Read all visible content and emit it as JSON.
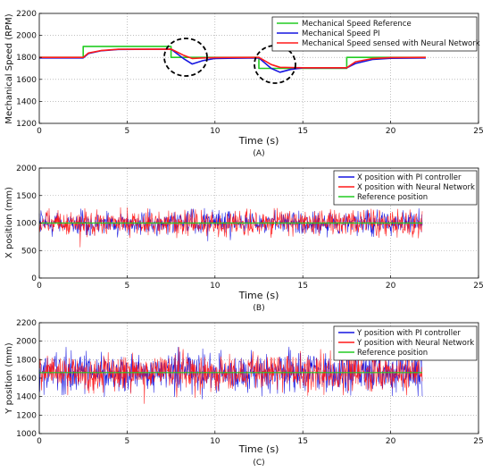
{
  "colors": {
    "green": "#22cc22",
    "blue": "#1515e0",
    "red": "#ff1a1a",
    "grid": "#9a9a9a",
    "axis": "#000000"
  },
  "chart_data": [
    {
      "type": "line",
      "caption": "(A)",
      "xlabel": "Time (s)",
      "ylabel": "Mechanical Speed (RPM)",
      "xlim": [
        0,
        25
      ],
      "ylim": [
        1200,
        2200
      ],
      "xticks": [
        "0",
        "5",
        "10",
        "15",
        "20",
        "25"
      ],
      "yticks": [
        "1200",
        "1400",
        "1600",
        "1800",
        "2000",
        "2200"
      ],
      "grid": true,
      "legend_position": "top-right",
      "annotations": [
        "dashed circle near t=9 s",
        "dashed circle near t=13.5 s"
      ],
      "series": [
        {
          "name": "Mechanical Speed Reference",
          "color": "green",
          "points": [
            [
              0,
              1800
            ],
            [
              2.5,
              1800
            ],
            [
              2.5,
              1900
            ],
            [
              7.5,
              1900
            ],
            [
              7.5,
              1800
            ],
            [
              12.5,
              1800
            ],
            [
              12.5,
              1700
            ],
            [
              17.5,
              1700
            ],
            [
              17.5,
              1800
            ],
            [
              22,
              1800
            ]
          ]
        },
        {
          "name": "Mechanical Speed PI",
          "color": "blue",
          "points": [
            [
              0,
              1795
            ],
            [
              2.5,
              1795
            ],
            [
              2.8,
              1835
            ],
            [
              3.5,
              1860
            ],
            [
              4.5,
              1872
            ],
            [
              7.5,
              1875
            ],
            [
              8.2,
              1790
            ],
            [
              8.7,
              1740
            ],
            [
              9.3,
              1770
            ],
            [
              10,
              1790
            ],
            [
              12.5,
              1795
            ],
            [
              13.2,
              1700
            ],
            [
              13.7,
              1665
            ],
            [
              14.3,
              1690
            ],
            [
              15,
              1705
            ],
            [
              17.5,
              1705
            ],
            [
              18,
              1745
            ],
            [
              19,
              1782
            ],
            [
              20,
              1792
            ],
            [
              22,
              1795
            ]
          ]
        },
        {
          "name": "Mechanical Speed sensed with Neural Network",
          "color": "red",
          "points": [
            [
              0,
              1800
            ],
            [
              2.5,
              1800
            ],
            [
              2.8,
              1840
            ],
            [
              3.5,
              1862
            ],
            [
              4.5,
              1874
            ],
            [
              7.5,
              1876
            ],
            [
              8.2,
              1820
            ],
            [
              8.7,
              1790
            ],
            [
              9.3,
              1795
            ],
            [
              10,
              1798
            ],
            [
              12.5,
              1800
            ],
            [
              13.2,
              1735
            ],
            [
              13.7,
              1710
            ],
            [
              14.3,
              1708
            ],
            [
              15,
              1706
            ],
            [
              17.5,
              1706
            ],
            [
              18,
              1760
            ],
            [
              19,
              1790
            ],
            [
              20,
              1798
            ],
            [
              22,
              1800
            ]
          ]
        }
      ]
    },
    {
      "type": "line",
      "caption": "(B)",
      "xlabel": "Time (s)",
      "ylabel": "X position (mm)",
      "xlim": [
        0,
        25
      ],
      "ylim": [
        0,
        2000
      ],
      "xticks": [
        "0",
        "5",
        "10",
        "15",
        "20",
        "25"
      ],
      "yticks": [
        "0",
        "500",
        "1000",
        "1500",
        "2000"
      ],
      "grid": true,
      "legend_position": "top-right",
      "series": [
        {
          "name": "X position with PI controller",
          "color": "blue",
          "style": "noise",
          "mean": 1000,
          "amplitude": 300,
          "t_end": 21.8
        },
        {
          "name": "X position with Neural Network",
          "color": "red",
          "style": "noise",
          "mean": 1000,
          "amplitude": 320,
          "t_end": 21.8
        },
        {
          "name": "Reference position",
          "color": "green",
          "style": "constant",
          "value": 1000,
          "t_end": 21.8
        }
      ]
    },
    {
      "type": "line",
      "caption": "(C)",
      "xlabel": "Time (s)",
      "ylabel": "Y position (mm)",
      "xlim": [
        0,
        25
      ],
      "ylim": [
        1000,
        2200
      ],
      "xticks": [
        "0",
        "5",
        "10",
        "15",
        "20",
        "25"
      ],
      "yticks": [
        "1000",
        "1200",
        "1400",
        "1600",
        "1800",
        "2000",
        "2200"
      ],
      "grid": true,
      "legend_position": "top-right",
      "series": [
        {
          "name": "Y position with PI controller",
          "color": "blue",
          "style": "noise",
          "mean": 1660,
          "amplitude": 320,
          "t_end": 21.8
        },
        {
          "name": "Y position with Neural Network",
          "color": "red",
          "style": "noise",
          "mean": 1660,
          "amplitude": 300,
          "t_end": 21.8
        },
        {
          "name": "Reference position",
          "color": "green",
          "style": "constant",
          "value": 1660,
          "t_end": 21.8
        }
      ]
    }
  ]
}
